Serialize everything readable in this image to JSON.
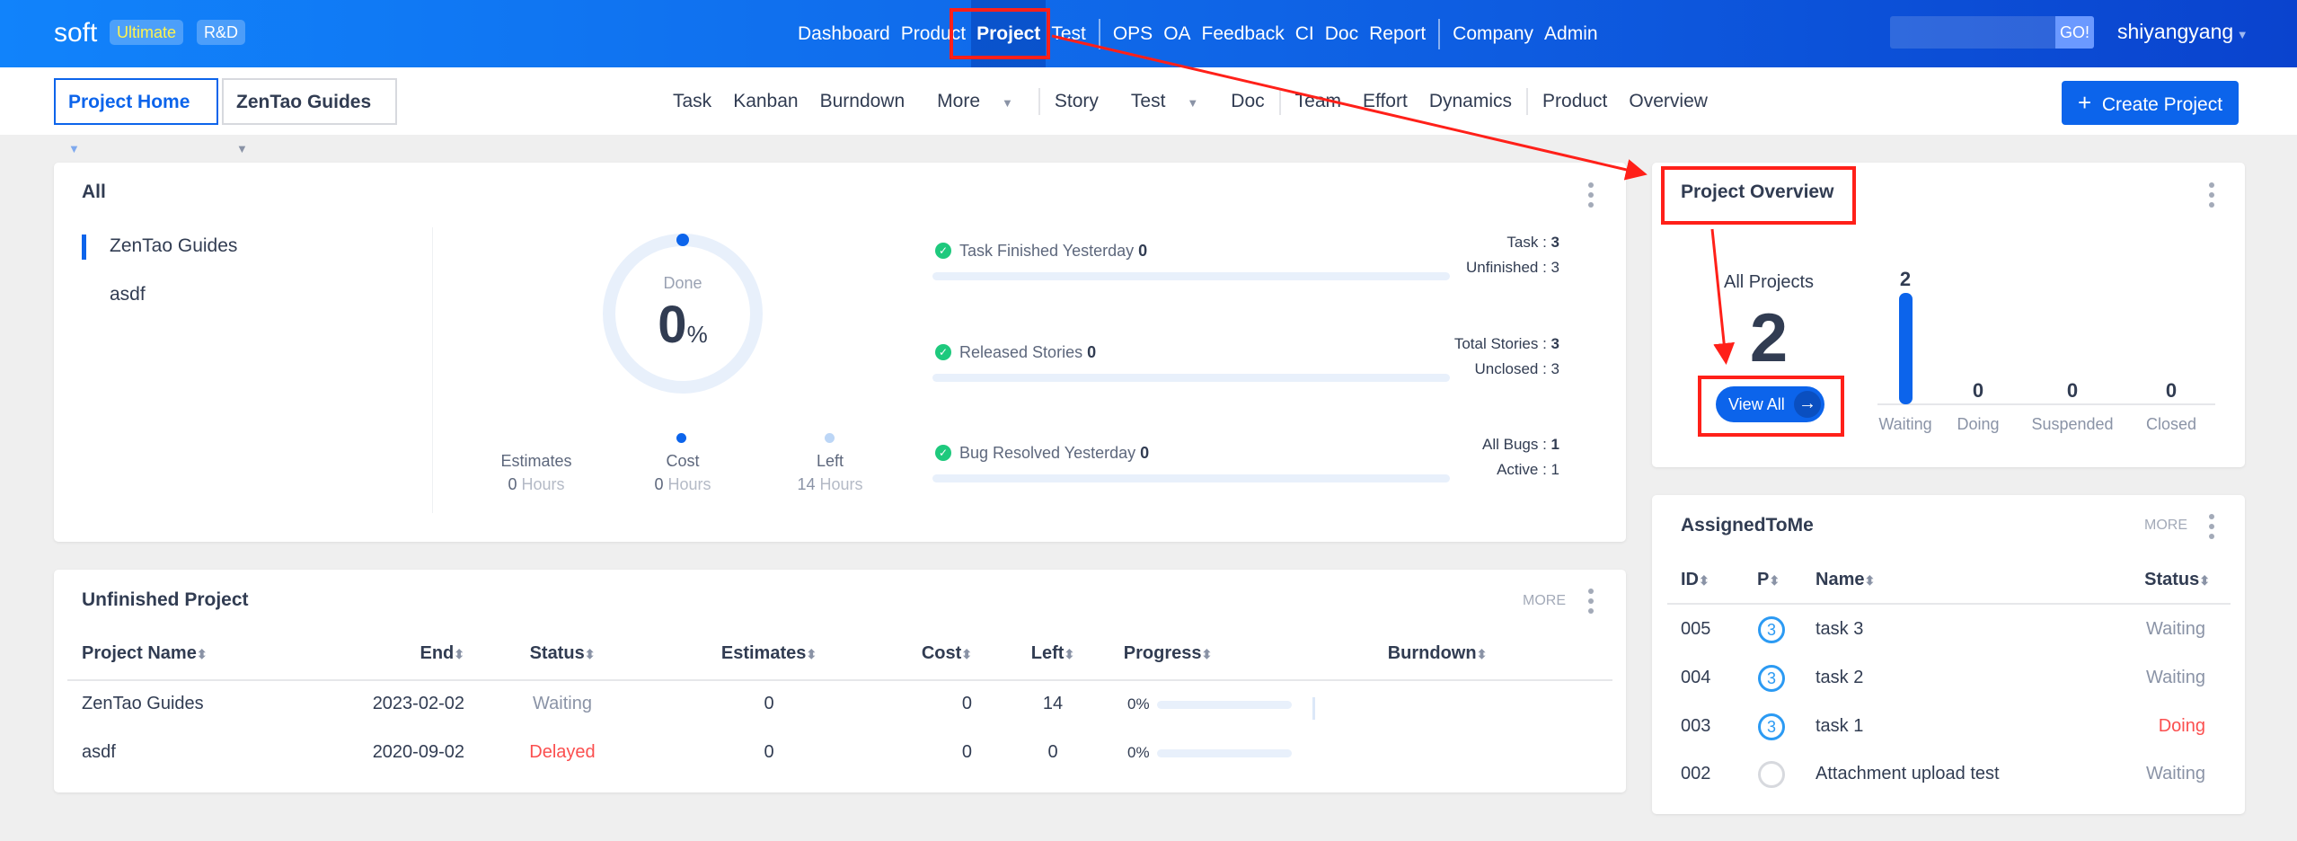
{
  "header": {
    "logo": "soft",
    "edition": "Ultimate",
    "mode": "R&D",
    "nav": [
      "Dashboard",
      "Product",
      "Project",
      "Test",
      "OPS",
      "OA",
      "Feedback",
      "CI",
      "Doc",
      "Report",
      "Company",
      "Admin"
    ],
    "active_nav": "Project",
    "search_placeholder": "",
    "go_label": "GO!",
    "user": "shiyangyang"
  },
  "subnav": {
    "breadcrumb": [
      "Project Home",
      "ZenTao Guides"
    ],
    "items": [
      "Task",
      "Kanban",
      "Burndown",
      "More",
      "Story",
      "Test",
      "Doc",
      "Team",
      "Effort",
      "Dynamics",
      "Product",
      "Overview"
    ],
    "create_label": "Create Project"
  },
  "all_card": {
    "title": "All",
    "projects": [
      "ZenTao Guides",
      "asdf"
    ],
    "selected_project": "ZenTao Guides",
    "done_label": "Done",
    "done_value": "0",
    "done_unit": "%",
    "done_percent": 0,
    "estimates": {
      "label": "Estimates",
      "value": "0",
      "unit": "Hours"
    },
    "cost": {
      "label": "Cost",
      "value": "0",
      "unit": "Hours"
    },
    "left": {
      "label": "Left",
      "value": "14",
      "unit": "Hours"
    },
    "stats": [
      {
        "label": "Task Finished Yesterday",
        "value": "0",
        "progress": 0,
        "r1_label": "Task : ",
        "r1_value": "3",
        "r2_label": "Unfinished : ",
        "r2_value": "3"
      },
      {
        "label": "Released Stories",
        "value": "0",
        "progress": 0,
        "r1_label": "Total Stories : ",
        "r1_value": "3",
        "r2_label": "Unclosed : ",
        "r2_value": "3"
      },
      {
        "label": "Bug Resolved Yesterday",
        "value": "0",
        "progress": 0,
        "r1_label": "All Bugs : ",
        "r1_value": "1",
        "r2_label": "Active : ",
        "r2_value": "1"
      }
    ]
  },
  "overview": {
    "title": "Project Overview",
    "all_label": "All Projects",
    "all_value": "2",
    "view_all": "View All",
    "chart_data": {
      "type": "bar",
      "categories": [
        "Waiting",
        "Doing",
        "Suspended",
        "Closed"
      ],
      "values": [
        2,
        0,
        0,
        0
      ],
      "color": "#0c64eb"
    }
  },
  "unfinished": {
    "title": "Unfinished Project",
    "more": "MORE",
    "columns": [
      "Project Name",
      "End",
      "Status",
      "Estimates",
      "Cost",
      "Left",
      "Progress",
      "Burndown"
    ],
    "rows": [
      {
        "name": "ZenTao Guides",
        "end": "2023-02-02",
        "status": "Waiting",
        "estimates": "0",
        "cost": "0",
        "left": "14",
        "progress": "0%"
      },
      {
        "name": "asdf",
        "end": "2020-09-02",
        "status": "Delayed",
        "estimates": "0",
        "cost": "0",
        "left": "0",
        "progress": "0%"
      }
    ]
  },
  "assigned": {
    "title": "AssignedToMe",
    "more": "MORE",
    "columns": [
      "ID",
      "P",
      "Name",
      "Status"
    ],
    "rows": [
      {
        "id": "005",
        "p": "3",
        "name": "task 3",
        "status": "Waiting"
      },
      {
        "id": "004",
        "p": "3",
        "name": "task 2",
        "status": "Waiting"
      },
      {
        "id": "003",
        "p": "3",
        "name": "task 1",
        "status": "Doing"
      },
      {
        "id": "002",
        "p": "",
        "name": "Attachment upload test",
        "status": "Waiting"
      }
    ]
  },
  "colors": {
    "primary": "#0c64eb",
    "delayed": "#fb4f4f",
    "doing": "#fb4f4f",
    "annotation": "#ff2019"
  }
}
